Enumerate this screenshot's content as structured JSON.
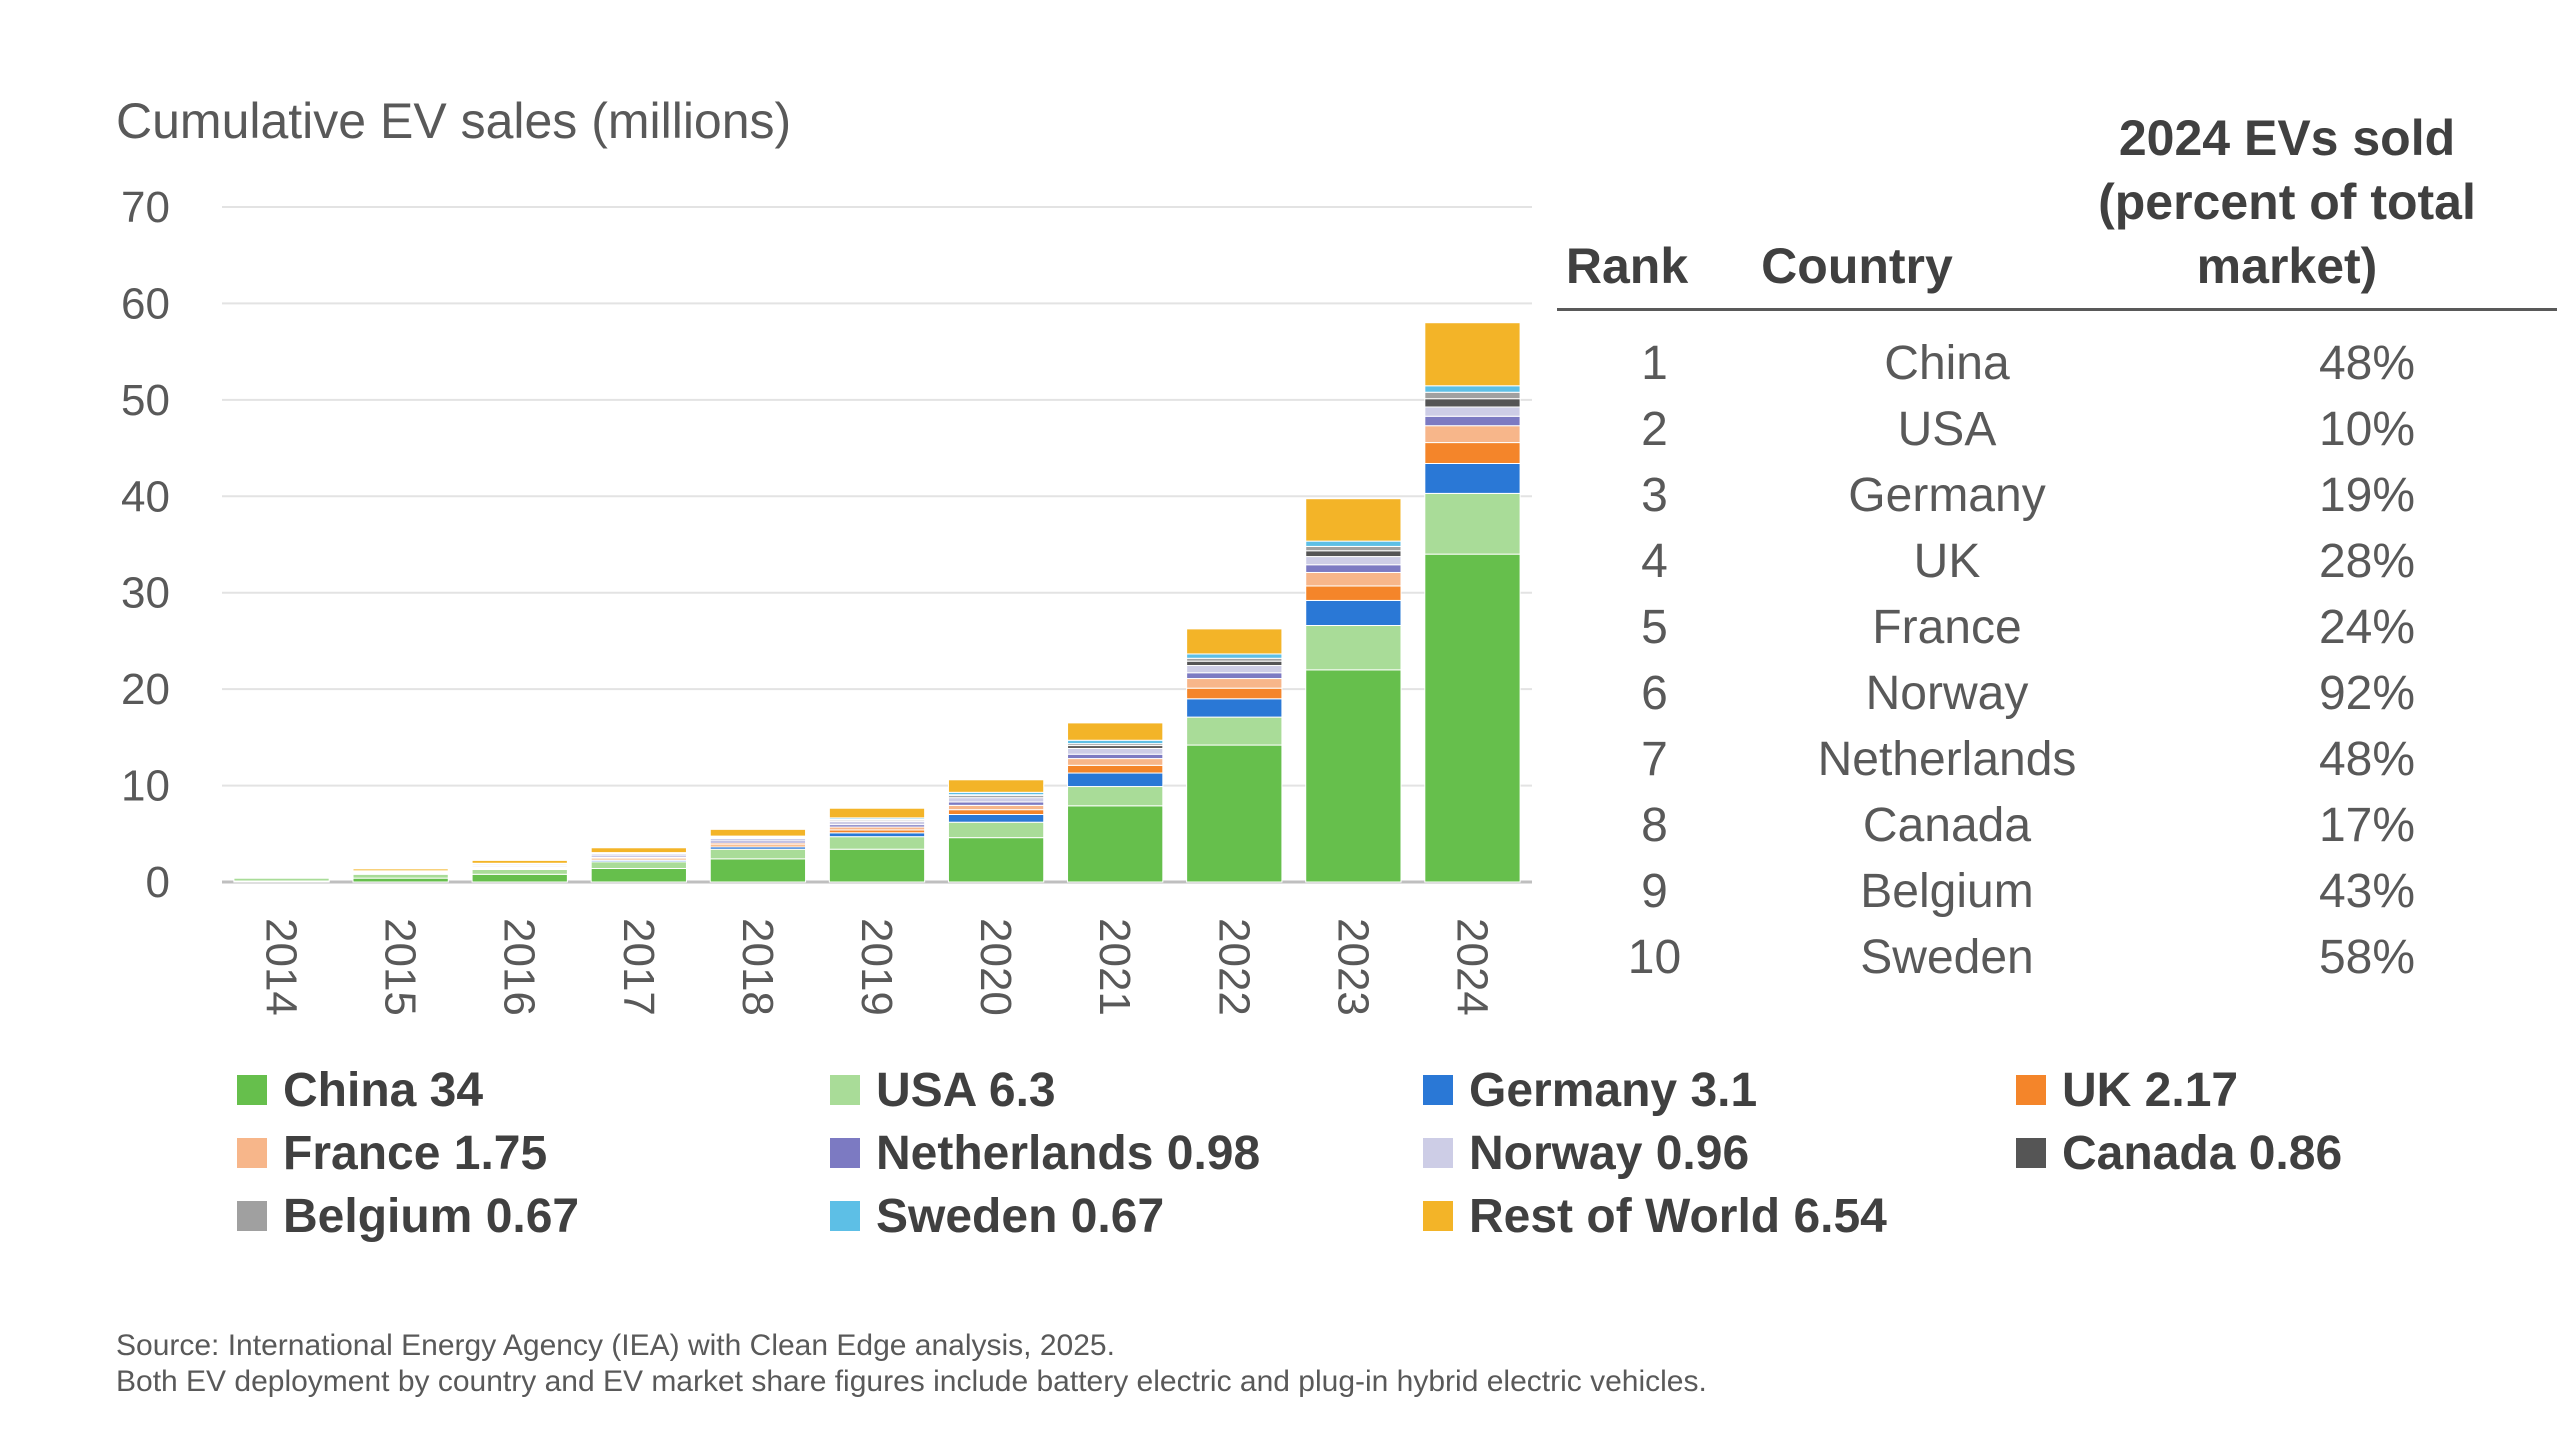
{
  "chart_data": {
    "type": "bar",
    "stacked": true,
    "ylabel": "Cumulative EV sales (millions)",
    "ylim": [
      0,
      70
    ],
    "yticks": [
      0,
      10,
      20,
      30,
      40,
      50,
      60,
      70
    ],
    "grid": true,
    "legend_position": "bottom",
    "categories": [
      "2014",
      "2015",
      "2016",
      "2017",
      "2018",
      "2019",
      "2020",
      "2021",
      "2022",
      "2023",
      "2024"
    ],
    "series": [
      {
        "name": "China 34",
        "color": "#66bf4c",
        "values": [
          0.1,
          0.4,
          0.8,
          1.4,
          2.4,
          3.4,
          4.6,
          7.9,
          14.2,
          22,
          34
        ]
      },
      {
        "name": "USA 6.3",
        "color": "#a9dc98",
        "values": [
          0.3,
          0.4,
          0.5,
          0.7,
          1.0,
          1.3,
          1.6,
          2.0,
          2.9,
          4.6,
          6.3
        ]
      },
      {
        "name": "Germany 3.1",
        "color": "#2a78d6",
        "values": [
          0.02,
          0.05,
          0.1,
          0.15,
          0.25,
          0.4,
          0.8,
          1.4,
          1.9,
          2.6,
          3.1
        ]
      },
      {
        "name": "UK 2.17",
        "color": "#f4852a",
        "values": [
          0.02,
          0.05,
          0.1,
          0.15,
          0.2,
          0.3,
          0.5,
          0.8,
          1.1,
          1.5,
          2.17
        ]
      },
      {
        "name": "France 1.75",
        "color": "#f7b68a",
        "values": [
          0.03,
          0.05,
          0.1,
          0.15,
          0.2,
          0.3,
          0.45,
          0.7,
          1.0,
          1.4,
          1.75
        ]
      },
      {
        "name": "Netherlands 0.98",
        "color": "#7c7ac2",
        "values": [
          0.05,
          0.08,
          0.12,
          0.15,
          0.2,
          0.25,
          0.35,
          0.45,
          0.6,
          0.8,
          0.98
        ]
      },
      {
        "name": "Norway 0.96",
        "color": "#cdcde6",
        "values": [
          0.05,
          0.08,
          0.13,
          0.2,
          0.27,
          0.35,
          0.45,
          0.6,
          0.75,
          0.85,
          0.96
        ]
      },
      {
        "name": "Canada 0.86",
        "color": "#555555",
        "values": [
          0.01,
          0.02,
          0.03,
          0.05,
          0.08,
          0.12,
          0.18,
          0.3,
          0.45,
          0.6,
          0.86
        ]
      },
      {
        "name": "Belgium 0.67",
        "color": "#a0a0a0",
        "values": [
          0.01,
          0.01,
          0.02,
          0.04,
          0.06,
          0.08,
          0.12,
          0.2,
          0.3,
          0.45,
          0.67
        ]
      },
      {
        "name": "Sweden 0.67",
        "color": "#5dbfe6",
        "values": [
          0.01,
          0.02,
          0.04,
          0.06,
          0.1,
          0.15,
          0.25,
          0.35,
          0.45,
          0.55,
          0.67
        ]
      },
      {
        "name": "Rest of World 6.54",
        "color": "#f3b428",
        "values": [
          0.1,
          0.2,
          0.3,
          0.5,
          0.7,
          1.0,
          1.3,
          1.8,
          2.6,
          4.4,
          6.54
        ]
      }
    ]
  },
  "table": {
    "headers": {
      "rank": "Rank",
      "country": "Country",
      "share_line1": "2024 EVs sold",
      "share_line2": "(percent of total",
      "share_line3": "market)"
    },
    "rows": [
      {
        "rank": "1",
        "country": "China",
        "share": "48%"
      },
      {
        "rank": "2",
        "country": "USA",
        "share": "10%"
      },
      {
        "rank": "3",
        "country": "Germany",
        "share": "19%"
      },
      {
        "rank": "4",
        "country": "UK",
        "share": "28%"
      },
      {
        "rank": "5",
        "country": "France",
        "share": "24%"
      },
      {
        "rank": "6",
        "country": "Norway",
        "share": "92%"
      },
      {
        "rank": "7",
        "country": "Netherlands",
        "share": "48%"
      },
      {
        "rank": "8",
        "country": "Canada",
        "share": "17%"
      },
      {
        "rank": "9",
        "country": "Belgium",
        "share": "43%"
      },
      {
        "rank": "10",
        "country": "Sweden",
        "share": "58%"
      }
    ]
  },
  "notes": {
    "source": "Source: International Energy Agency (IEA) with Clean Edge analysis, 2025.",
    "footnote": "Both EV deployment by country and EV market share figures include battery electric and plug-in hybrid electric vehicles."
  }
}
